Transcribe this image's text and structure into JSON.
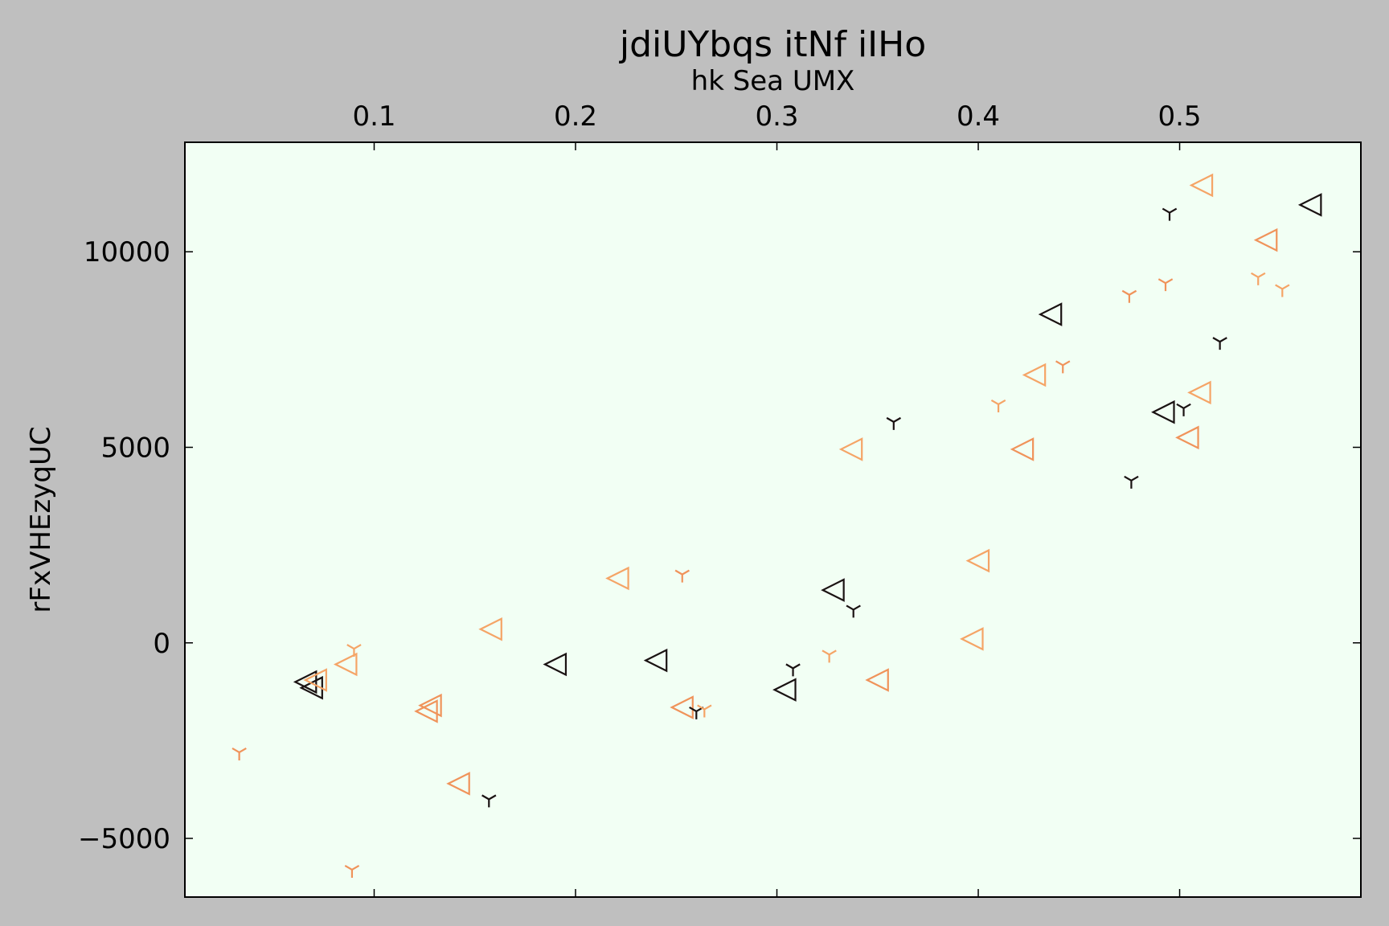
{
  "chart_data": {
    "type": "scatter",
    "title": "jdiUYbqs  itNf iIHo",
    "xlabel": "hk Sea UMX",
    "ylabel": "rFxVHEzyqUC",
    "xlim": [
      0.006,
      0.59
    ],
    "ylim": [
      -6500,
      12800
    ],
    "x_ticks": [
      0.1,
      0.2,
      0.3,
      0.4,
      0.5
    ],
    "x_tick_labels": [
      "0.1",
      "0.2",
      "0.3",
      "0.4",
      "0.5"
    ],
    "y_ticks": [
      -5000,
      0,
      5000,
      10000
    ],
    "y_tick_labels": [
      "−5000",
      "0",
      "5000",
      "10000"
    ],
    "x_axis_position": "top",
    "grid": false,
    "colors": {
      "figure_bg": "#bfbfbf",
      "plot_bg": "#f2fff4"
    },
    "points": [
      {
        "x": 0.066,
        "y": -1000,
        "marker": "triangle-left",
        "color": "#1a1212"
      },
      {
        "x": 0.069,
        "y": -1150,
        "marker": "triangle-left",
        "color": "#1a1212"
      },
      {
        "x": 0.071,
        "y": -950,
        "marker": "triangle-left",
        "color": "#f5a466"
      },
      {
        "x": 0.086,
        "y": -550,
        "marker": "triangle-left",
        "color": "#f5a466"
      },
      {
        "x": 0.128,
        "y": -1600,
        "marker": "triangle-left",
        "color": "#f0935a"
      },
      {
        "x": 0.126,
        "y": -1750,
        "marker": "triangle-left",
        "color": "#f0935a"
      },
      {
        "x": 0.142,
        "y": -3600,
        "marker": "triangle-left",
        "color": "#f0935a"
      },
      {
        "x": 0.158,
        "y": 350,
        "marker": "triangle-left",
        "color": "#f5a466"
      },
      {
        "x": 0.19,
        "y": -550,
        "marker": "triangle-left",
        "color": "#1a1212"
      },
      {
        "x": 0.221,
        "y": 1650,
        "marker": "triangle-left",
        "color": "#f5a466"
      },
      {
        "x": 0.24,
        "y": -450,
        "marker": "triangle-left",
        "color": "#1a1212"
      },
      {
        "x": 0.253,
        "y": -1650,
        "marker": "triangle-left",
        "color": "#f0935a"
      },
      {
        "x": 0.304,
        "y": -1200,
        "marker": "triangle-left",
        "color": "#1a1212"
      },
      {
        "x": 0.328,
        "y": 1350,
        "marker": "triangle-left",
        "color": "#1a1212"
      },
      {
        "x": 0.337,
        "y": 4950,
        "marker": "triangle-left",
        "color": "#f5a466"
      },
      {
        "x": 0.35,
        "y": -950,
        "marker": "triangle-left",
        "color": "#f0935a"
      },
      {
        "x": 0.397,
        "y": 100,
        "marker": "triangle-left",
        "color": "#f5a466"
      },
      {
        "x": 0.4,
        "y": 2100,
        "marker": "triangle-left",
        "color": "#f5a466"
      },
      {
        "x": 0.422,
        "y": 4950,
        "marker": "triangle-left",
        "color": "#f0935a"
      },
      {
        "x": 0.428,
        "y": 6850,
        "marker": "triangle-left",
        "color": "#f5a466"
      },
      {
        "x": 0.436,
        "y": 8400,
        "marker": "triangle-left",
        "color": "#1a1212"
      },
      {
        "x": 0.492,
        "y": 5900,
        "marker": "triangle-left",
        "color": "#1a1212"
      },
      {
        "x": 0.504,
        "y": 5250,
        "marker": "triangle-left",
        "color": "#f0935a"
      },
      {
        "x": 0.51,
        "y": 6400,
        "marker": "triangle-left",
        "color": "#f5a466"
      },
      {
        "x": 0.511,
        "y": 11700,
        "marker": "triangle-left",
        "color": "#f5a466"
      },
      {
        "x": 0.543,
        "y": 10300,
        "marker": "triangle-left",
        "color": "#f0935a"
      },
      {
        "x": 0.565,
        "y": 11200,
        "marker": "triangle-left",
        "color": "#1a1212"
      },
      {
        "x": 0.033,
        "y": -2800,
        "marker": "tri-down",
        "color": "#f0935a"
      },
      {
        "x": 0.09,
        "y": -150,
        "marker": "tri-down",
        "color": "#f5a466"
      },
      {
        "x": 0.089,
        "y": -5800,
        "marker": "tri-down",
        "color": "#f0935a"
      },
      {
        "x": 0.157,
        "y": -4000,
        "marker": "tri-down",
        "color": "#1a1212"
      },
      {
        "x": 0.253,
        "y": 1750,
        "marker": "tri-down",
        "color": "#f0935a"
      },
      {
        "x": 0.26,
        "y": -1750,
        "marker": "tri-down",
        "color": "#1a1212"
      },
      {
        "x": 0.264,
        "y": -1700,
        "marker": "tri-down",
        "color": "#f5a466"
      },
      {
        "x": 0.308,
        "y": -650,
        "marker": "tri-down",
        "color": "#1a1212"
      },
      {
        "x": 0.326,
        "y": -300,
        "marker": "tri-down",
        "color": "#f5a466"
      },
      {
        "x": 0.338,
        "y": 850,
        "marker": "tri-down",
        "color": "#1a1212"
      },
      {
        "x": 0.358,
        "y": 5650,
        "marker": "tri-down",
        "color": "#1a1212"
      },
      {
        "x": 0.41,
        "y": 6100,
        "marker": "tri-down",
        "color": "#f5a466"
      },
      {
        "x": 0.442,
        "y": 7100,
        "marker": "tri-down",
        "color": "#f0935a"
      },
      {
        "x": 0.475,
        "y": 8900,
        "marker": "tri-down",
        "color": "#f0935a"
      },
      {
        "x": 0.476,
        "y": 4150,
        "marker": "tri-down",
        "color": "#1a1212"
      },
      {
        "x": 0.493,
        "y": 9200,
        "marker": "tri-down",
        "color": "#f0935a"
      },
      {
        "x": 0.495,
        "y": 11000,
        "marker": "tri-down",
        "color": "#1a1212"
      },
      {
        "x": 0.502,
        "y": 6000,
        "marker": "tri-down",
        "color": "#1a1212"
      },
      {
        "x": 0.52,
        "y": 7700,
        "marker": "tri-down",
        "color": "#1a1212"
      },
      {
        "x": 0.539,
        "y": 9350,
        "marker": "tri-down",
        "color": "#f5a466"
      },
      {
        "x": 0.551,
        "y": 9050,
        "marker": "tri-down",
        "color": "#f5a466"
      }
    ]
  }
}
